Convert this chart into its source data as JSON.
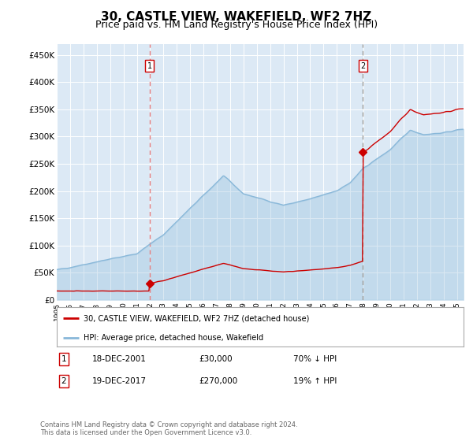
{
  "title": "30, CASTLE VIEW, WAKEFIELD, WF2 7HZ",
  "subtitle": "Price paid vs. HM Land Registry's House Price Index (HPI)",
  "title_fontsize": 11,
  "subtitle_fontsize": 9,
  "background_color": "#ffffff",
  "plot_bg_color": "#dce9f5",
  "ylabel_vals": [
    "£0",
    "£50K",
    "£100K",
    "£150K",
    "£200K",
    "£250K",
    "£300K",
    "£350K",
    "£400K",
    "£450K"
  ],
  "ylim": [
    0,
    470000
  ],
  "xlim_start": 1995.0,
  "xlim_end": 2025.5,
  "hpi_color": "#89b8d9",
  "price_color": "#cc0000",
  "marker_color": "#cc0000",
  "vline1_color": "#e88080",
  "vline2_color": "#999999",
  "sale1_date": 2001.96,
  "sale1_price": 30000,
  "sale2_date": 2017.96,
  "sale2_price": 270000,
  "legend1": "30, CASTLE VIEW, WAKEFIELD, WF2 7HZ (detached house)",
  "legend2": "HPI: Average price, detached house, Wakefield",
  "note1_label": "1",
  "note1_date": "18-DEC-2001",
  "note1_price": "£30,000",
  "note1_pct": "70% ↓ HPI",
  "note2_label": "2",
  "note2_date": "19-DEC-2017",
  "note2_price": "£270,000",
  "note2_pct": "19% ↑ HPI",
  "footer": "Contains HM Land Registry data © Crown copyright and database right 2024.\nThis data is licensed under the Open Government Licence v3.0."
}
